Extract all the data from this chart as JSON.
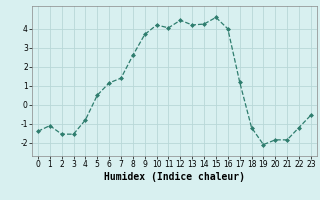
{
  "x": [
    0,
    1,
    2,
    3,
    4,
    5,
    6,
    7,
    8,
    9,
    10,
    11,
    12,
    13,
    14,
    15,
    16,
    17,
    18,
    19,
    20,
    21,
    22,
    23
  ],
  "y": [
    -1.4,
    -1.1,
    -1.55,
    -1.55,
    -0.8,
    0.5,
    1.15,
    1.4,
    2.6,
    3.7,
    4.2,
    4.05,
    4.45,
    4.2,
    4.25,
    4.6,
    4.0,
    1.2,
    -1.2,
    -2.1,
    -1.85,
    -1.85,
    -1.2,
    -0.55
  ],
  "line_color": "#2e7d6e",
  "marker": "D",
  "marker_size": 2.0,
  "bg_color": "#d8f0f0",
  "grid_color": "#b8d8d8",
  "xlabel": "Humidex (Indice chaleur)",
  "xlim": [
    -0.5,
    23.5
  ],
  "ylim": [
    -2.7,
    5.2
  ],
  "yticks": [
    -2,
    -1,
    0,
    1,
    2,
    3,
    4
  ],
  "xticks": [
    0,
    1,
    2,
    3,
    4,
    5,
    6,
    7,
    8,
    9,
    10,
    11,
    12,
    13,
    14,
    15,
    16,
    17,
    18,
    19,
    20,
    21,
    22,
    23
  ],
  "tick_fontsize": 5.5,
  "xlabel_fontsize": 7.0,
  "linewidth": 0.9
}
